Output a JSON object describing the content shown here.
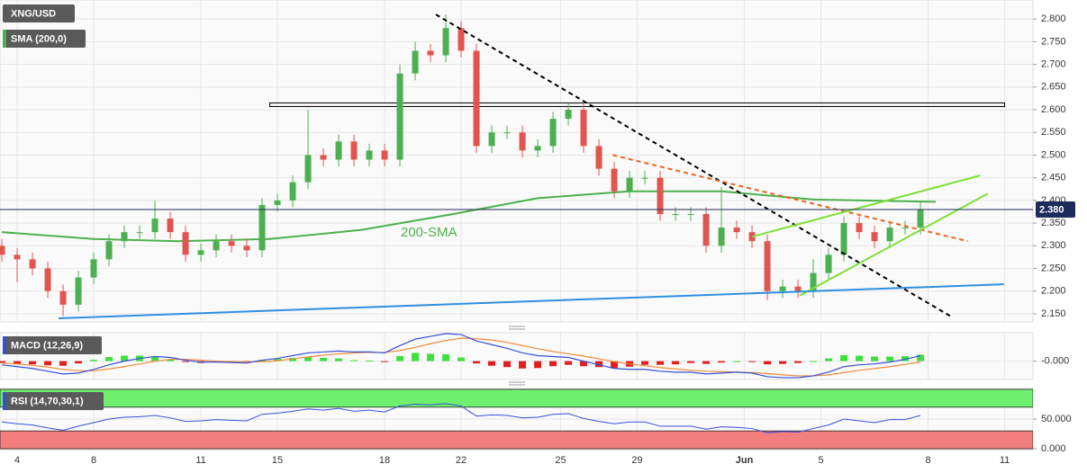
{
  "chart_data": [
    {
      "type": "candlestick",
      "title": "XNG/USD",
      "x": [
        -2,
        0,
        2,
        4,
        6,
        8,
        10,
        12,
        14,
        16,
        18,
        20,
        22,
        24,
        26,
        28,
        30,
        32,
        34,
        36,
        38,
        40,
        42,
        44,
        46,
        48,
        50,
        52,
        54,
        56,
        58,
        60,
        62,
        64,
        66,
        68,
        70,
        72,
        74,
        76,
        78,
        80,
        82,
        84,
        86,
        88,
        90,
        92,
        94,
        96,
        98,
        100,
        102,
        104,
        106,
        108,
        110,
        112,
        114,
        116,
        118
      ],
      "open": [
        2.3,
        2.28,
        2.27,
        2.25,
        2.2,
        2.17,
        2.23,
        2.27,
        2.31,
        2.33,
        2.33,
        2.36,
        2.33,
        2.28,
        2.29,
        2.31,
        2.3,
        2.29,
        2.39,
        2.4,
        2.44,
        2.5,
        2.49,
        2.53,
        2.49,
        2.51,
        2.49,
        2.68,
        2.73,
        2.72,
        2.78,
        2.73,
        2.52,
        2.55,
        2.55,
        2.51,
        2.52,
        2.58,
        2.6,
        2.52,
        2.47,
        2.42,
        2.45,
        2.45,
        2.37,
        2.37,
        2.37,
        2.3,
        2.34,
        2.33,
        2.31,
        2.2,
        2.21,
        2.2,
        2.24,
        2.28,
        2.35,
        2.33,
        2.31,
        2.34,
        2.34
      ],
      "high": [
        2.315,
        2.295,
        2.285,
        2.265,
        2.215,
        2.245,
        2.285,
        2.325,
        2.345,
        2.345,
        2.4,
        2.375,
        2.345,
        2.305,
        2.325,
        2.325,
        2.315,
        2.405,
        2.415,
        2.455,
        2.6,
        2.515,
        2.545,
        2.545,
        2.525,
        2.525,
        2.7,
        2.75,
        2.745,
        2.81,
        2.795,
        2.745,
        2.565,
        2.565,
        2.565,
        2.535,
        2.595,
        2.615,
        2.615,
        2.535,
        2.485,
        2.465,
        2.465,
        2.465,
        2.385,
        2.385,
        2.385,
        2.43,
        2.355,
        2.345,
        2.325,
        2.225,
        2.225,
        2.27,
        2.295,
        2.365,
        2.365,
        2.345,
        2.355,
        2.355,
        2.4
      ],
      "low": [
        2.265,
        2.22,
        2.235,
        2.185,
        2.145,
        2.155,
        2.215,
        2.255,
        2.295,
        2.315,
        2.315,
        2.315,
        2.265,
        2.265,
        2.275,
        2.285,
        2.275,
        2.275,
        2.375,
        2.385,
        2.425,
        2.475,
        2.475,
        2.475,
        2.475,
        2.475,
        2.475,
        2.665,
        2.705,
        2.705,
        2.715,
        2.505,
        2.505,
        2.535,
        2.495,
        2.495,
        2.505,
        2.565,
        2.505,
        2.455,
        2.405,
        2.405,
        2.435,
        2.355,
        2.355,
        2.355,
        2.285,
        2.285,
        2.315,
        2.295,
        2.18,
        2.185,
        2.185,
        2.185,
        2.225,
        2.265,
        2.315,
        2.295,
        2.295,
        2.325,
        2.325
      ],
      "close": [
        2.28,
        2.27,
        2.25,
        2.2,
        2.17,
        2.23,
        2.27,
        2.31,
        2.33,
        2.33,
        2.36,
        2.33,
        2.28,
        2.29,
        2.31,
        2.3,
        2.29,
        2.39,
        2.4,
        2.44,
        2.5,
        2.49,
        2.53,
        2.49,
        2.51,
        2.49,
        2.68,
        2.73,
        2.72,
        2.78,
        2.73,
        2.52,
        2.55,
        2.55,
        2.51,
        2.52,
        2.58,
        2.6,
        2.52,
        2.47,
        2.42,
        2.45,
        2.45,
        2.37,
        2.37,
        2.37,
        2.3,
        2.34,
        2.33,
        2.31,
        2.2,
        2.21,
        2.2,
        2.24,
        2.28,
        2.35,
        2.33,
        2.31,
        2.34,
        2.34,
        2.38
      ],
      "up_color": "#4caf50",
      "down_color": "#e0554f",
      "xlim": [
        -2.24,
        132.7
      ],
      "ylim": [
        2.132,
        2.842
      ],
      "yticks": [
        {
          "value": 2.15,
          "label": "2.150"
        },
        {
          "value": 2.2,
          "label": "2.200"
        },
        {
          "value": 2.25,
          "label": "2.250"
        },
        {
          "value": 2.3,
          "label": "2.300"
        },
        {
          "value": 2.35,
          "label": "2.350"
        },
        {
          "value": 2.4,
          "label": "2.400"
        },
        {
          "value": 2.45,
          "label": "2.450"
        },
        {
          "value": 2.5,
          "label": "2.500"
        },
        {
          "value": 2.55,
          "label": "2.550"
        },
        {
          "value": 2.6,
          "label": "2.600"
        },
        {
          "value": 2.65,
          "label": "2.650"
        },
        {
          "value": 2.7,
          "label": "2.700"
        },
        {
          "value": 2.75,
          "label": "2.750"
        },
        {
          "value": 2.8,
          "label": "2.800"
        }
      ],
      "grid": true,
      "sma": {
        "name": "SMA (200,0)",
        "label": "200-SMA",
        "color": "#4cb04c",
        "x": [
          -2,
          10,
          21,
          33,
          45,
          57,
          68,
          80,
          92,
          104,
          120
        ],
        "values": [
          2.33,
          2.315,
          2.31,
          2.315,
          2.335,
          2.37,
          2.405,
          2.42,
          2.42,
          2.402,
          2.397
        ]
      },
      "price_line": {
        "value": 2.38,
        "label": "2.380",
        "color": "#1c2b5a"
      },
      "zones": [
        {
          "x": [
            33,
            129
          ],
          "values": [
            2.607,
            2.615
          ],
          "color": "#000000"
        }
      ],
      "trendlines": [
        {
          "color": "#000000",
          "dash": true,
          "x": [
            54.7,
            121.9
          ],
          "values": [
            2.81,
            2.145
          ]
        },
        {
          "color": "#e8641e",
          "dash": true,
          "x": [
            77.8,
            124.2
          ],
          "values": [
            2.5,
            2.31
          ]
        },
        {
          "color": "#7ee03a",
          "dash": false,
          "x": [
            96,
            125.8
          ],
          "values": [
            2.32,
            2.455
          ]
        },
        {
          "color": "#7ee03a",
          "dash": false,
          "x": [
            102.2,
            126.8
          ],
          "values": [
            2.19,
            2.415
          ]
        },
        {
          "color": "#2f8fe0",
          "dash": false,
          "x": [
            5.4,
            128.9
          ],
          "values": [
            2.14,
            2.215
          ]
        }
      ]
    },
    {
      "type": "macd",
      "title": "MACD (12,26,9)",
      "xlim": [
        -2.24,
        132.7
      ],
      "ylim": [
        -0.04,
        0.062
      ],
      "yticks": [
        {
          "value": 0,
          "label": "-0.000"
        }
      ],
      "macd": {
        "color": "#3550d8",
        "values": [
          -0.008,
          -0.012,
          -0.016,
          -0.022,
          -0.028,
          -0.026,
          -0.018,
          -0.008,
          0.0,
          0.006,
          0.01,
          0.008,
          0.002,
          -0.002,
          -0.002,
          -0.003,
          -0.004,
          0.002,
          0.006,
          0.012,
          0.018,
          0.02,
          0.022,
          0.02,
          0.02,
          0.018,
          0.034,
          0.048,
          0.054,
          0.06,
          0.058,
          0.044,
          0.036,
          0.028,
          0.018,
          0.012,
          0.01,
          0.008,
          0.0,
          -0.008,
          -0.016,
          -0.018,
          -0.018,
          -0.022,
          -0.024,
          -0.024,
          -0.028,
          -0.026,
          -0.024,
          -0.026,
          -0.034,
          -0.036,
          -0.036,
          -0.032,
          -0.024,
          -0.012,
          -0.008,
          -0.006,
          -0.002,
          0.004,
          0.012
        ]
      },
      "signal": {
        "color": "#f08a3a",
        "values": [
          -0.004,
          -0.006,
          -0.009,
          -0.013,
          -0.018,
          -0.021,
          -0.021,
          -0.017,
          -0.012,
          -0.006,
          0.0,
          0.004,
          0.004,
          0.002,
          0.0,
          -0.001,
          -0.002,
          -0.001,
          0.001,
          0.005,
          0.009,
          0.013,
          0.016,
          0.018,
          0.019,
          0.019,
          0.023,
          0.03,
          0.038,
          0.045,
          0.05,
          0.049,
          0.046,
          0.041,
          0.034,
          0.027,
          0.021,
          0.016,
          0.011,
          0.005,
          -0.001,
          -0.006,
          -0.01,
          -0.014,
          -0.017,
          -0.02,
          -0.022,
          -0.023,
          -0.024,
          -0.025,
          -0.027,
          -0.03,
          -0.032,
          -0.032,
          -0.03,
          -0.025,
          -0.02,
          -0.016,
          -0.012,
          -0.007,
          -0.002
        ]
      },
      "histogram": {
        "up_color": "#3ee03e",
        "down_color": "#e01e1e",
        "values": [
          -0.004,
          -0.006,
          -0.007,
          -0.009,
          -0.01,
          -0.005,
          0.003,
          0.009,
          0.012,
          0.012,
          0.01,
          0.004,
          -0.002,
          -0.004,
          -0.002,
          -0.002,
          -0.002,
          0.003,
          0.005,
          0.007,
          0.009,
          0.007,
          0.006,
          0.002,
          0.001,
          -0.001,
          0.011,
          0.018,
          0.016,
          0.015,
          0.008,
          -0.005,
          -0.01,
          -0.013,
          -0.016,
          -0.015,
          -0.011,
          -0.008,
          -0.011,
          -0.013,
          -0.015,
          -0.012,
          -0.008,
          -0.008,
          -0.007,
          -0.004,
          -0.006,
          -0.003,
          0.0,
          -0.001,
          -0.007,
          -0.006,
          -0.004,
          0.0,
          0.006,
          0.013,
          0.012,
          0.01,
          0.01,
          0.011,
          0.014
        ]
      }
    },
    {
      "type": "rsi",
      "title": "RSI (14,70,30,1)",
      "xlim": [
        -2.24,
        132.7
      ],
      "ylim": [
        -1.5,
        101.5
      ],
      "yticks": [
        {
          "value": 0,
          "label": "0.000"
        },
        {
          "value": 50,
          "label": "50.000"
        }
      ],
      "overbought": 70,
      "oversold": 30,
      "overbought_color": "#6ef06e",
      "oversold_color": "#f27e7e",
      "color": "#3550d8",
      "values": [
        45,
        42,
        40,
        35,
        31,
        38,
        44,
        50,
        53,
        54,
        56,
        52,
        46,
        47,
        49,
        48,
        47,
        58,
        60,
        63,
        67,
        65,
        68,
        63,
        65,
        62,
        72,
        75,
        74,
        76,
        72,
        55,
        57,
        56,
        52,
        53,
        58,
        59,
        51,
        46,
        42,
        45,
        45,
        38,
        38,
        38,
        33,
        37,
        36,
        34,
        27,
        29,
        28,
        34,
        40,
        50,
        47,
        44,
        49,
        49,
        56
      ],
      "xticks": [
        {
          "value": 0,
          "label": "4"
        },
        {
          "value": 10,
          "label": "8"
        },
        {
          "value": 24,
          "label": "11"
        },
        {
          "value": 34,
          "label": "15"
        },
        {
          "value": 48,
          "label": "18"
        },
        {
          "value": 58,
          "label": "22"
        },
        {
          "value": 71,
          "label": "25"
        },
        {
          "value": 81,
          "label": "29"
        },
        {
          "value": 95,
          "label": "Jun"
        },
        {
          "value": 105,
          "label": "5"
        },
        {
          "value": 119,
          "label": "8"
        },
        {
          "value": 129,
          "label": "11"
        }
      ]
    }
  ]
}
